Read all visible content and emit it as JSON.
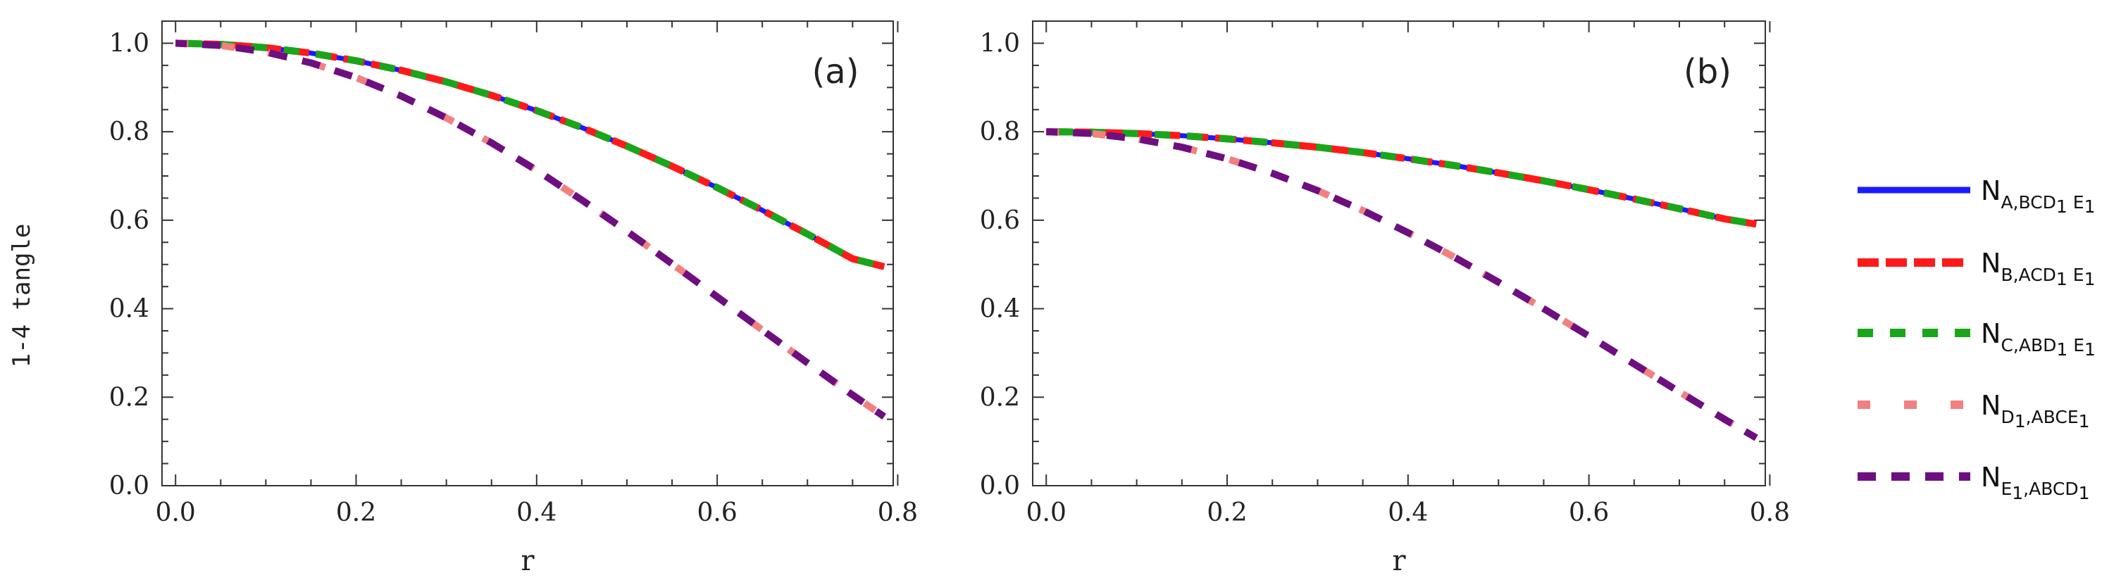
{
  "ylabel": "1-4 tangle",
  "legend": [
    {
      "base": "N",
      "sub": "A,BCD",
      "sub1": "1",
      "mid": " E",
      "sub2": "1"
    },
    {
      "base": "N",
      "sub": "B,ACD",
      "sub1": "1",
      "mid": " E",
      "sub2": "1"
    },
    {
      "base": "N",
      "sub": "C,ABD",
      "sub1": "1",
      "mid": " E",
      "sub2": "1"
    },
    {
      "base": "N",
      "sub": "D",
      "sub1": "1",
      "mid": ",ABCE",
      "sub2": "1"
    },
    {
      "base": "N",
      "sub": "E",
      "sub1": "1",
      "mid": ",ABCD",
      "sub2": "1"
    }
  ],
  "colors": {
    "series_A": "#1a1aff",
    "series_B": "#ff1a1a",
    "series_C": "#1aa61a",
    "series_D": "#f28080",
    "series_E": "#6e0f80"
  },
  "chart_data": [
    {
      "type": "line",
      "panel_label": "(a)",
      "title": "",
      "xlabel": "r",
      "ylabel": "1-4 tangle",
      "xlim": [
        -0.015,
        0.795
      ],
      "ylim": [
        0,
        1.05
      ],
      "xticks": [
        "0.0",
        "0.2",
        "0.4",
        "0.6",
        "0.8"
      ],
      "yticks": [
        "0.0",
        "0.2",
        "0.4",
        "0.6",
        "0.8",
        "1.0"
      ],
      "x": [
        0,
        0.05,
        0.1,
        0.15,
        0.2,
        0.25,
        0.3,
        0.35,
        0.4,
        0.45,
        0.5,
        0.55,
        0.6,
        0.65,
        0.7,
        0.75,
        0.785
      ],
      "series": [
        {
          "name": "N_{A,BCD1 E1}",
          "values": [
            1.0,
            0.9975,
            0.99,
            0.9777,
            0.9605,
            0.9388,
            0.9127,
            0.8823,
            0.8478,
            0.8095,
            0.7675,
            0.7221,
            0.6737,
            0.6225,
            0.5688,
            0.5129,
            0.4951
          ]
        },
        {
          "name": "N_{B,ACD1 E1}",
          "values": [
            1.0,
            0.9975,
            0.99,
            0.9777,
            0.9605,
            0.9388,
            0.9127,
            0.8823,
            0.8478,
            0.8095,
            0.7675,
            0.7221,
            0.6737,
            0.6225,
            0.5688,
            0.5129,
            0.4951
          ]
        },
        {
          "name": "N_{C,ABD1 E1}",
          "values": [
            1.0,
            0.9975,
            0.99,
            0.9777,
            0.9605,
            0.9388,
            0.9127,
            0.8823,
            0.8478,
            0.8095,
            0.7675,
            0.7221,
            0.6737,
            0.6225,
            0.5688,
            0.5129,
            0.4951
          ]
        },
        {
          "name": "N_{D1,ABCE1}",
          "values": [
            1.0,
            0.995,
            0.9801,
            0.9557,
            0.9224,
            0.8807,
            0.8313,
            0.775,
            0.7129,
            0.6458,
            0.575,
            0.5016,
            0.4268,
            0.3517,
            0.2775,
            0.2051,
            0.1561
          ]
        },
        {
          "name": "N_{E1,ABCD1}",
          "values": [
            1.0,
            0.995,
            0.9801,
            0.9557,
            0.9224,
            0.8807,
            0.8313,
            0.775,
            0.7129,
            0.6458,
            0.575,
            0.5016,
            0.4268,
            0.3517,
            0.2775,
            0.2051,
            0.1561
          ]
        }
      ]
    },
    {
      "type": "line",
      "panel_label": "(b)",
      "title": "",
      "xlabel": "r",
      "ylabel": "",
      "xlim": [
        -0.015,
        0.795
      ],
      "ylim": [
        0,
        1.05
      ],
      "xticks": [
        "0.0",
        "0.2",
        "0.4",
        "0.6",
        "0.8"
      ],
      "yticks": [
        "0.0",
        "0.2",
        "0.4",
        "0.6",
        "0.8",
        "1.0"
      ],
      "x": [
        0,
        0.05,
        0.1,
        0.15,
        0.2,
        0.25,
        0.3,
        0.35,
        0.4,
        0.45,
        0.5,
        0.55,
        0.6,
        0.65,
        0.7,
        0.75,
        0.785
      ],
      "series": [
        {
          "name": "N_{A,BCD1 E1}",
          "values": [
            0.8,
            0.799,
            0.796,
            0.791,
            0.784,
            0.775,
            0.765,
            0.753,
            0.739,
            0.724,
            0.707,
            0.689,
            0.669,
            0.648,
            0.626,
            0.603,
            0.591
          ]
        },
        {
          "name": "N_{B,ACD1 E1}",
          "values": [
            0.8,
            0.799,
            0.796,
            0.791,
            0.784,
            0.775,
            0.765,
            0.753,
            0.739,
            0.724,
            0.707,
            0.689,
            0.669,
            0.648,
            0.626,
            0.603,
            0.591
          ]
        },
        {
          "name": "N_{C,ABD1 E1}",
          "values": [
            0.8,
            0.799,
            0.796,
            0.791,
            0.784,
            0.775,
            0.765,
            0.753,
            0.739,
            0.724,
            0.707,
            0.689,
            0.669,
            0.648,
            0.626,
            0.603,
            0.591
          ]
        },
        {
          "name": "N_{D1,ABCE1}",
          "values": [
            0.8,
            0.796,
            0.784,
            0.765,
            0.739,
            0.706,
            0.667,
            0.622,
            0.572,
            0.518,
            0.46,
            0.4,
            0.338,
            0.275,
            0.212,
            0.15,
            0.108
          ]
        },
        {
          "name": "N_{E1,ABCD1}",
          "values": [
            0.8,
            0.796,
            0.784,
            0.765,
            0.739,
            0.706,
            0.667,
            0.622,
            0.572,
            0.518,
            0.46,
            0.4,
            0.338,
            0.275,
            0.212,
            0.15,
            0.108
          ]
        }
      ]
    }
  ]
}
